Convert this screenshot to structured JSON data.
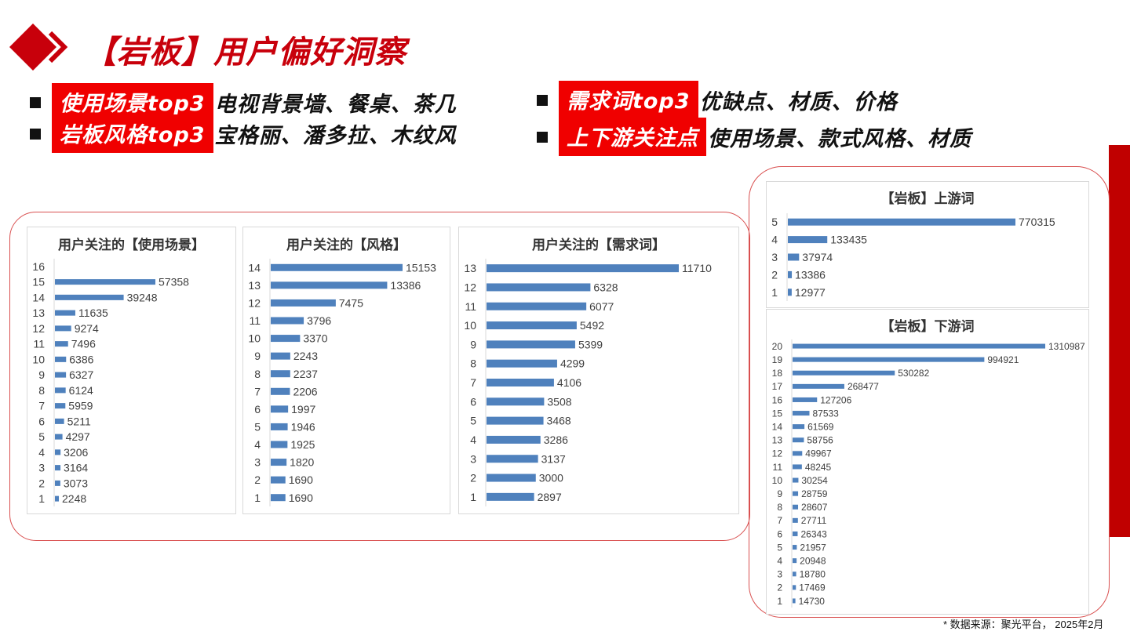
{
  "header": {
    "title": "【岩板】用户偏好洞察"
  },
  "bullets": [
    {
      "tag": "使用场景top3",
      "text": "电视背景墙、餐桌、茶几"
    },
    {
      "tag": "岩板风格top3",
      "text": "宝格丽、潘多拉、木纹风"
    },
    {
      "tag": "需求词top3",
      "text": "优缺点、材质、价格"
    },
    {
      "tag": "上下游关注点",
      "text": "使用场景、款式风格、材质"
    }
  ],
  "colors": {
    "accent": "#c8000b",
    "tag_bg": "#f00000",
    "bar": "#4f81bd",
    "frame": "#d95050"
  },
  "icons": {
    "logo": "red-diamond-chevron-icon"
  },
  "footnote": "* 数据来源：聚光平台， 2025年2月",
  "chart_data": [
    {
      "type": "bar",
      "orientation": "horizontal",
      "title": "用户关注的【使用场景】",
      "categories": [
        "16",
        "15",
        "14",
        "13",
        "12",
        "11",
        "10",
        "9",
        "8",
        "7",
        "6",
        "5",
        "4",
        "3",
        "2",
        "1"
      ],
      "values": [
        null,
        57358,
        39248,
        11635,
        9274,
        7496,
        6386,
        6327,
        6124,
        5959,
        5211,
        4297,
        3206,
        3164,
        3073,
        2248
      ]
    },
    {
      "type": "bar",
      "orientation": "horizontal",
      "title": "用户关注的【风格】",
      "categories": [
        "14",
        "13",
        "12",
        "11",
        "10",
        "9",
        "8",
        "7",
        "6",
        "5",
        "4",
        "3",
        "2",
        "1"
      ],
      "values": [
        15153,
        13386,
        7475,
        3796,
        3370,
        2243,
        2237,
        2206,
        1997,
        1946,
        1925,
        1820,
        1690,
        1690
      ]
    },
    {
      "type": "bar",
      "orientation": "horizontal",
      "title": "用户关注的【需求词】",
      "categories": [
        "13",
        "12",
        "11",
        "10",
        "9",
        "8",
        "7",
        "6",
        "5",
        "4",
        "3",
        "2",
        "1"
      ],
      "values": [
        11710,
        6328,
        6077,
        5492,
        5399,
        4299,
        4106,
        3508,
        3468,
        3286,
        3137,
        3000,
        2897
      ]
    },
    {
      "type": "bar",
      "orientation": "horizontal",
      "title": "【岩板】上游词",
      "categories": [
        "5",
        "4",
        "3",
        "2",
        "1"
      ],
      "values": [
        770315,
        133435,
        37974,
        13386,
        12977
      ]
    },
    {
      "type": "bar",
      "orientation": "horizontal",
      "title": "【岩板】下游词",
      "categories": [
        "20",
        "19",
        "18",
        "17",
        "16",
        "15",
        "14",
        "13",
        "12",
        "11",
        "10",
        "9",
        "8",
        "7",
        "6",
        "5",
        "4",
        "3",
        "2",
        "1"
      ],
      "values": [
        1310987,
        994921,
        530282,
        268477,
        127206,
        87533,
        61569,
        58756,
        49967,
        48245,
        30254,
        28759,
        28607,
        27711,
        26343,
        21957,
        20948,
        18780,
        17469,
        14730
      ]
    }
  ]
}
